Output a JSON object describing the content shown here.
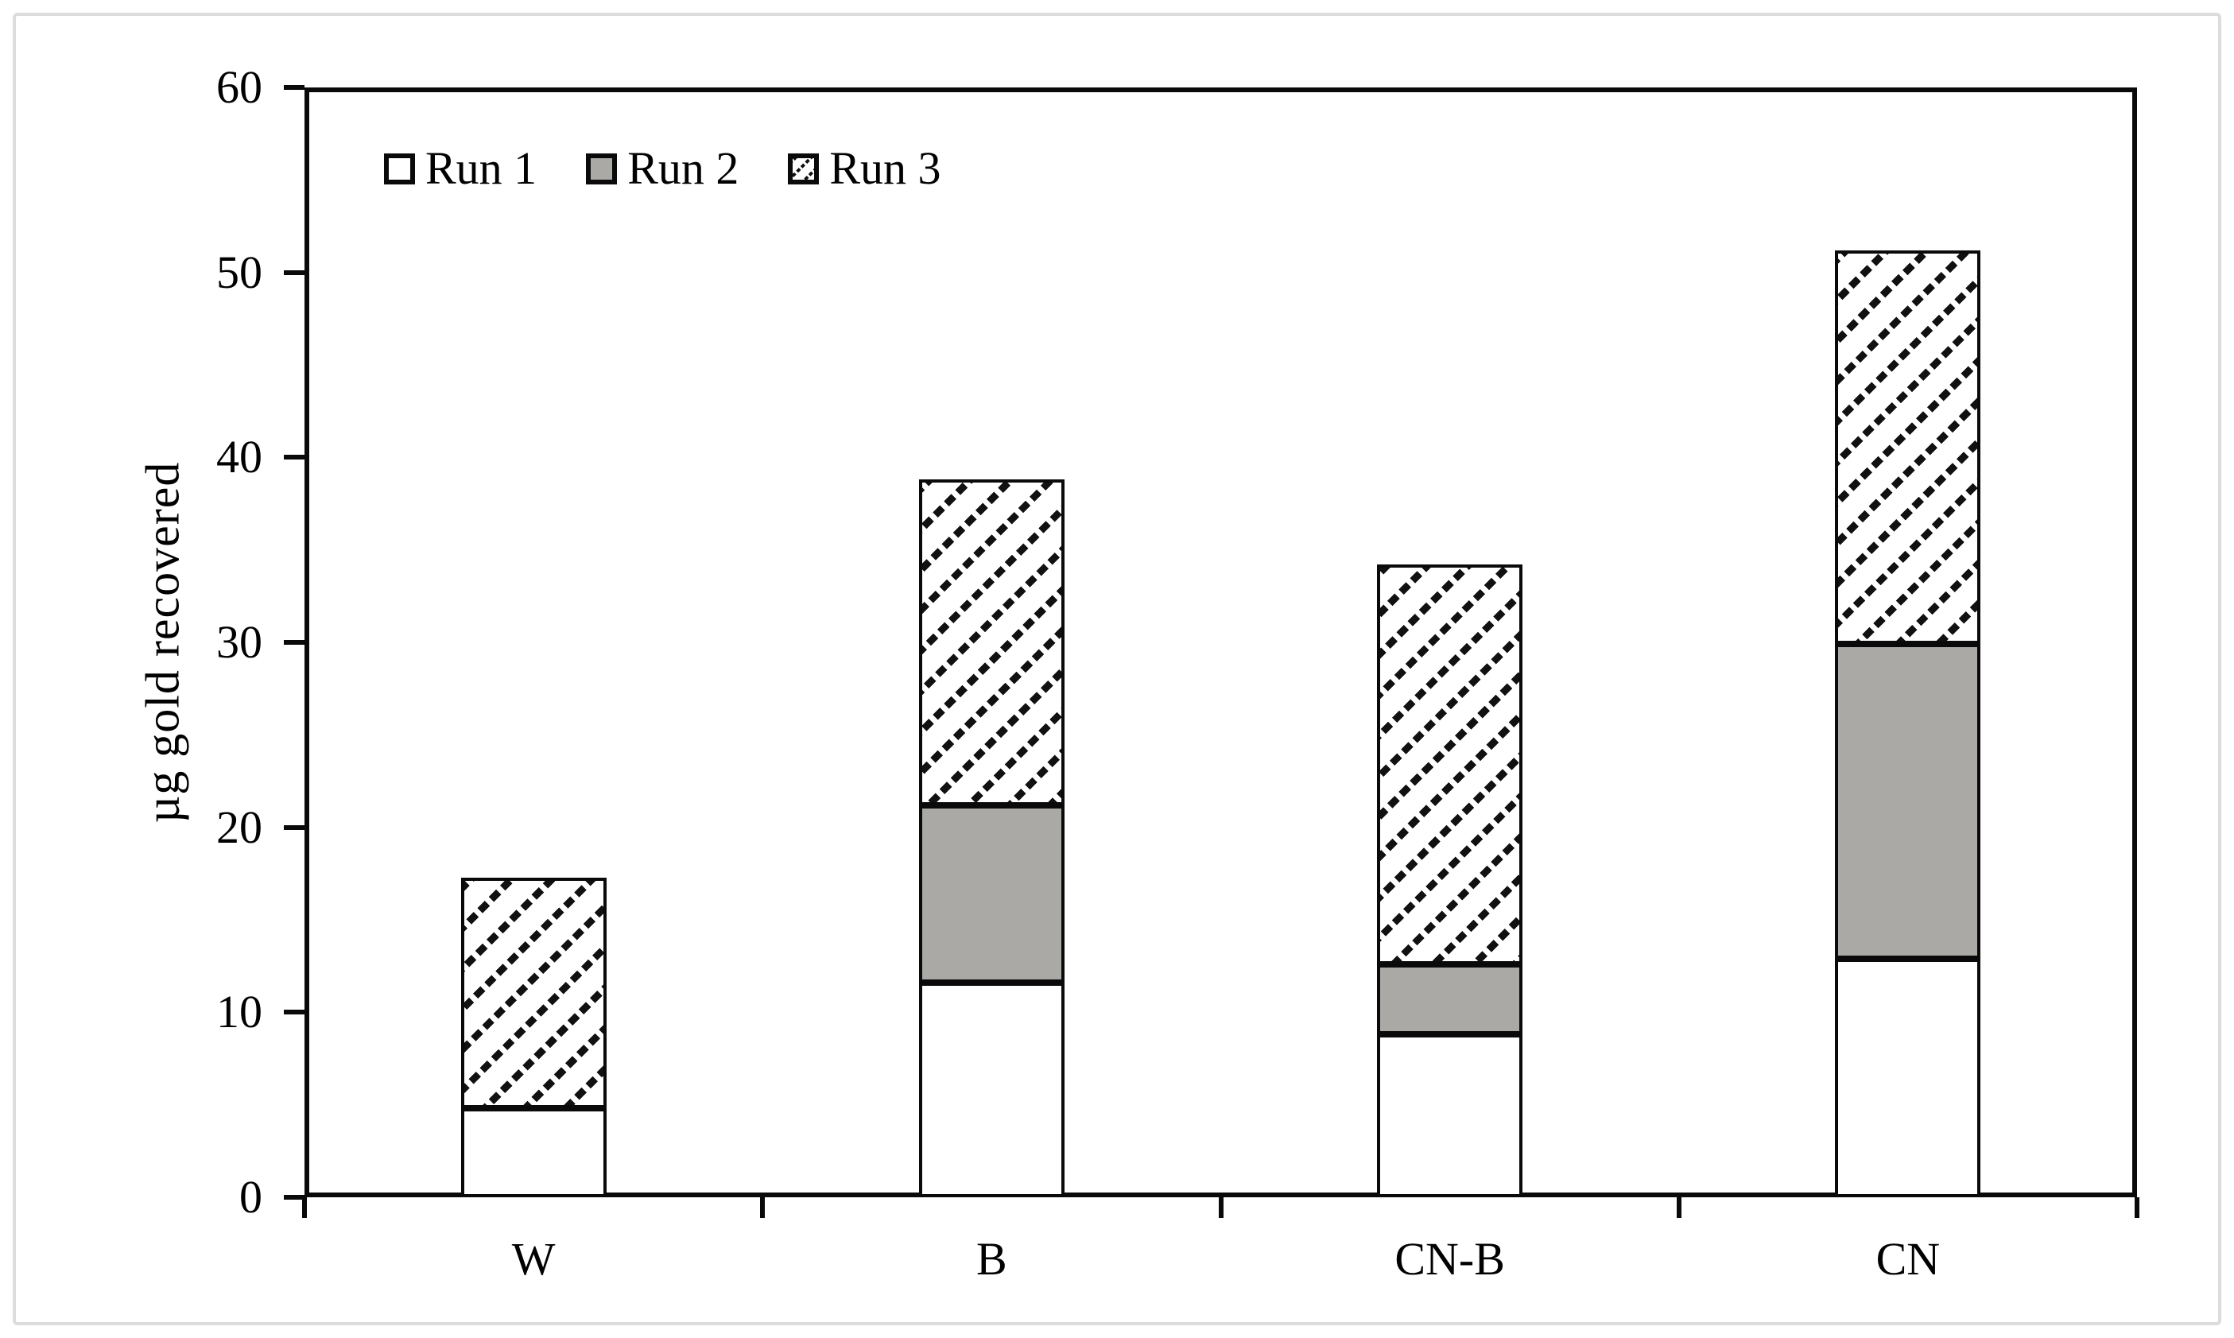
{
  "figure": {
    "frame_color": "#dcdcdc",
    "background": "#ffffff",
    "axis_color": "#0a0a0a"
  },
  "chart_data": {
    "type": "bar",
    "stacked": true,
    "title": "",
    "xlabel": "",
    "ylabel": "µg gold recovered",
    "categories": [
      "W",
      "B",
      "CN-B",
      "CN"
    ],
    "series": [
      {
        "name": "Run 1",
        "style": "white",
        "fill": "#ffffff",
        "values": [
          4.8,
          11.6,
          8.8,
          12.9
        ]
      },
      {
        "name": "Run 2",
        "style": "gray",
        "fill": "#aba9a6",
        "values": [
          0,
          9.6,
          3.8,
          17.0
        ]
      },
      {
        "name": "Run 3",
        "style": "hatch",
        "fill": "diagonal-hatch",
        "values": [
          12.5,
          17.6,
          21.6,
          21.3
        ]
      }
    ],
    "stack_totals": [
      17.3,
      38.8,
      34.2,
      51.2
    ],
    "ylim": [
      0,
      60
    ],
    "yticks": [
      0,
      10,
      20,
      30,
      40,
      50,
      60
    ],
    "grid": false,
    "legend_position": "top-left-inside",
    "bar_border_color": "#000000"
  }
}
